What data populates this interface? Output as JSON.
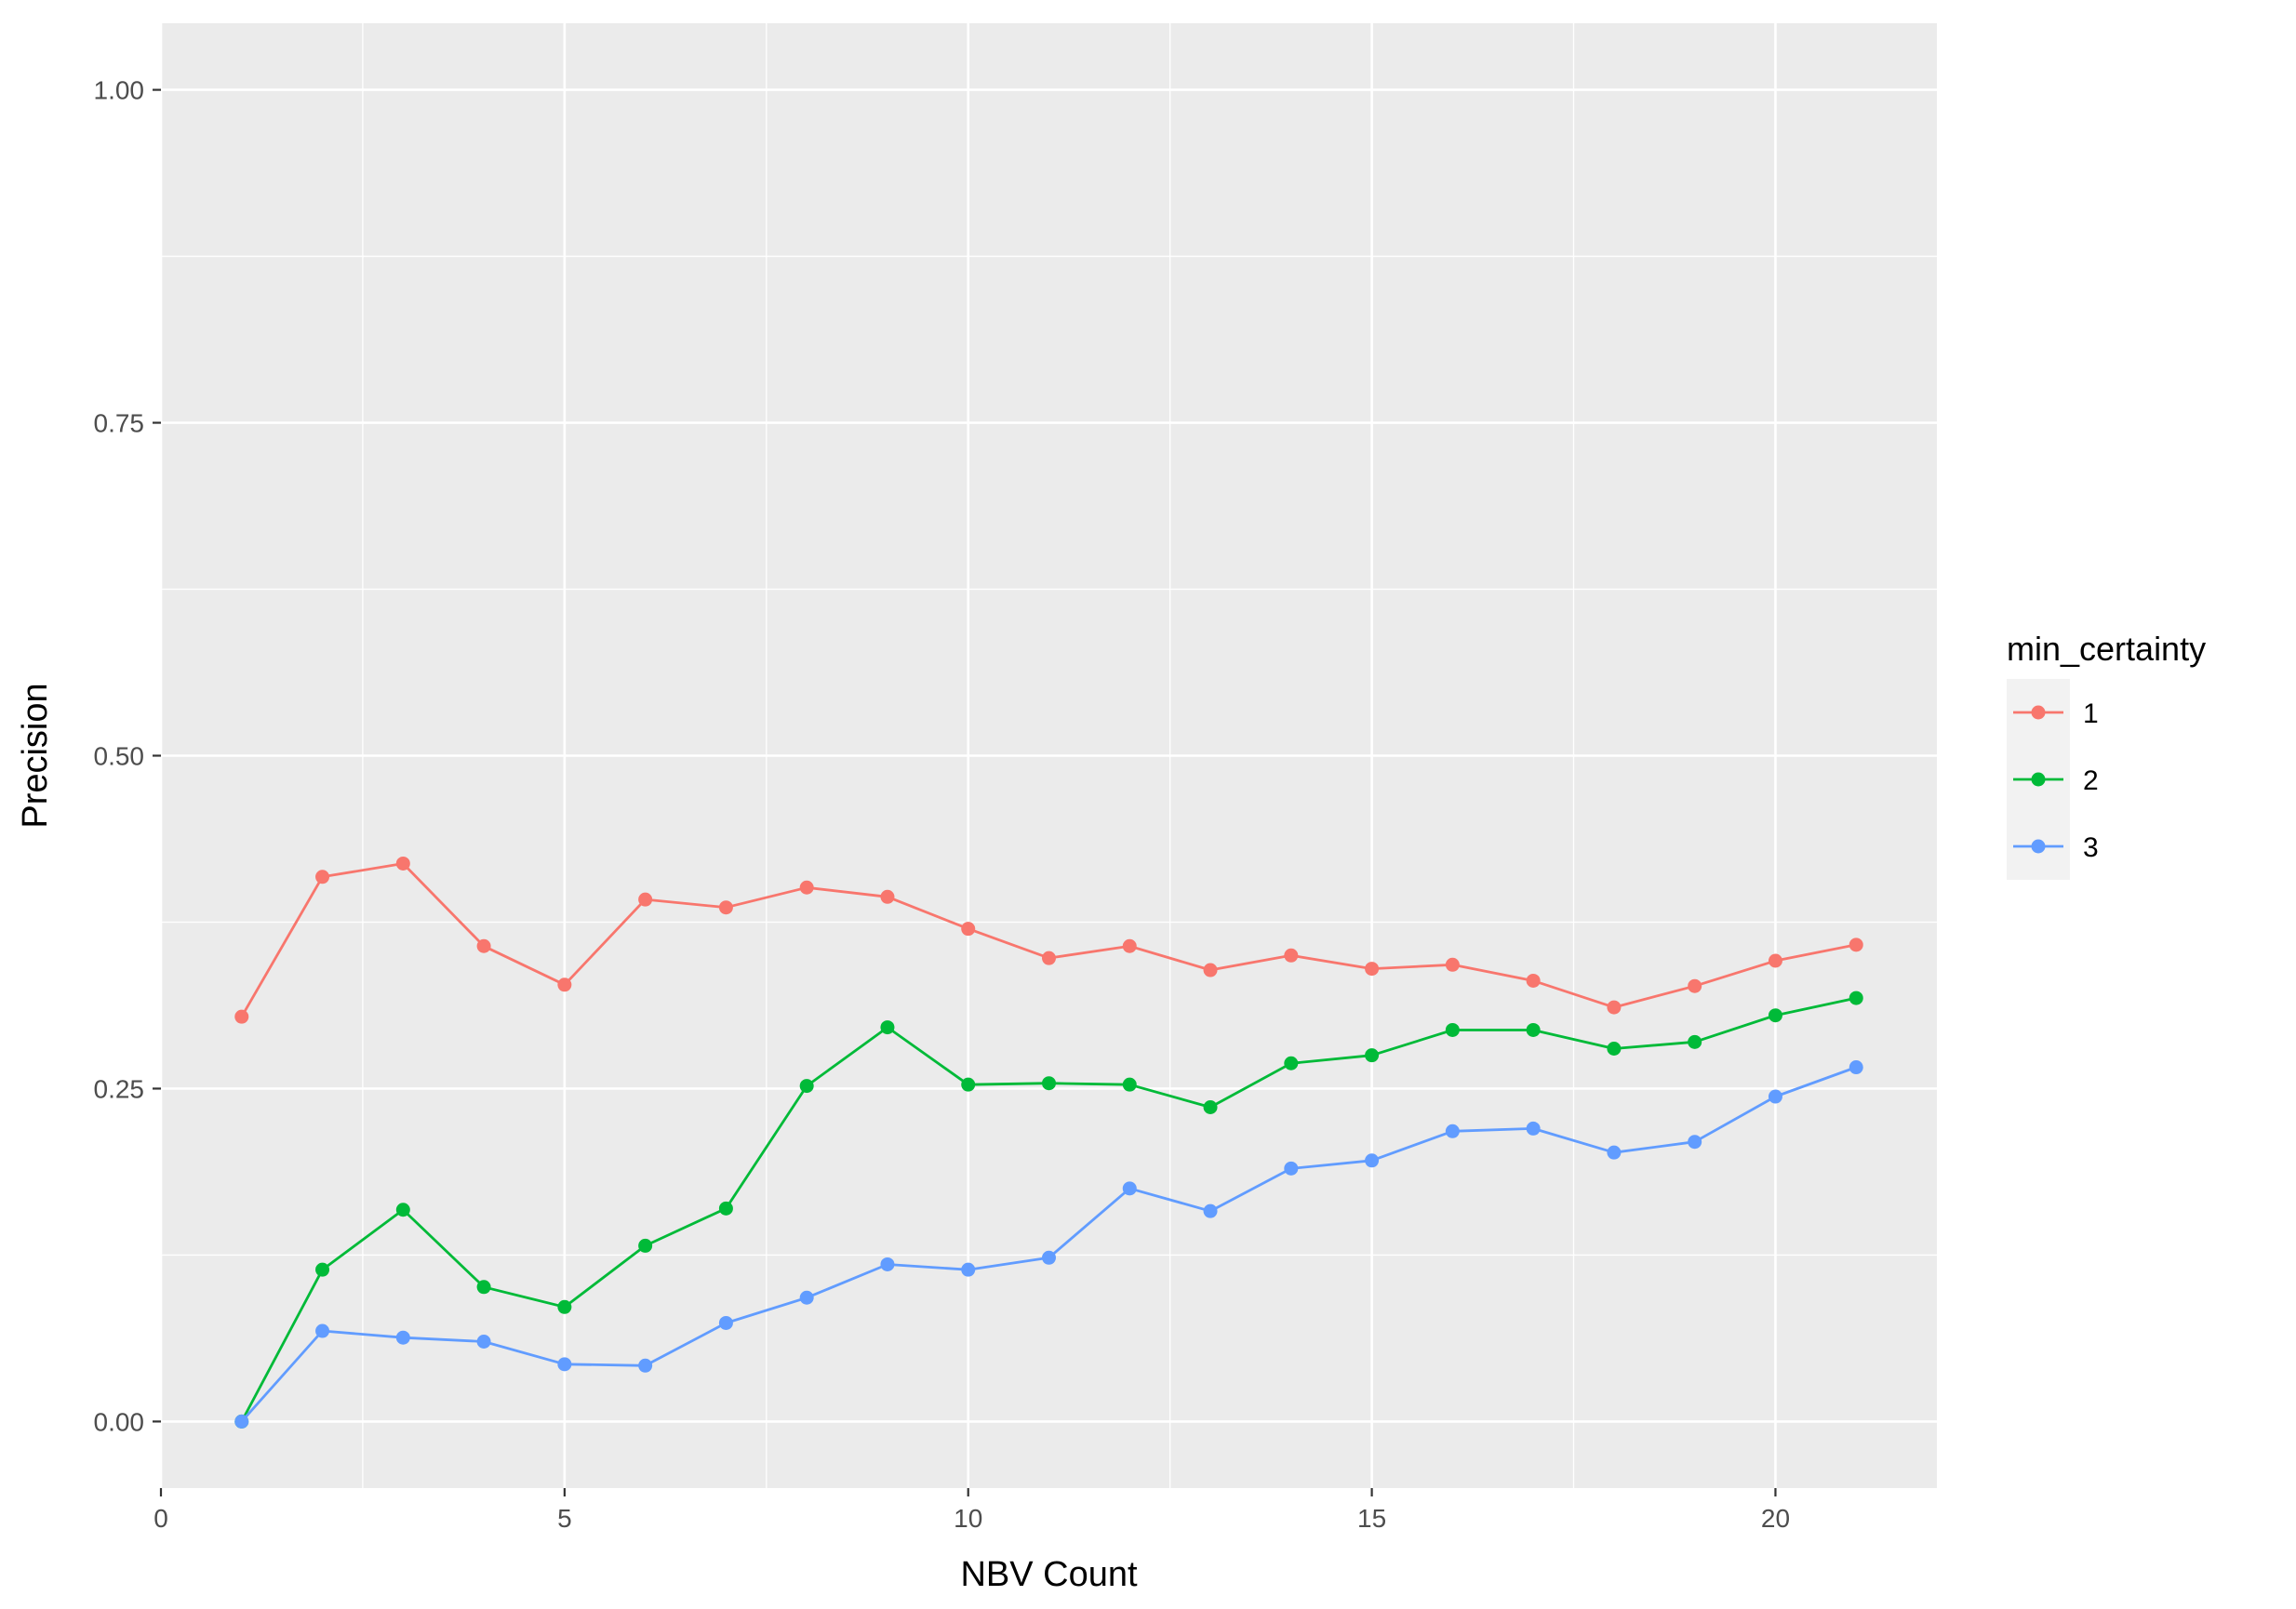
{
  "chart_data": {
    "type": "line",
    "title": "",
    "xlabel": "NBV Count",
    "ylabel": "Precision",
    "xlim": [
      0,
      22
    ],
    "ylim": [
      -0.05,
      1.05
    ],
    "x_ticks": [
      0,
      5,
      10,
      15,
      20
    ],
    "x_tick_labels": [
      "0",
      "5",
      "10",
      "15",
      "20"
    ],
    "y_ticks": [
      0,
      0.25,
      0.5,
      0.75,
      1.0
    ],
    "y_tick_labels": [
      "0.00",
      "0.25",
      "0.50",
      "0.75",
      "1.00"
    ],
    "grid": true,
    "legend": {
      "title": "min_certainty",
      "placement": "right"
    },
    "x": [
      1,
      2,
      3,
      4,
      5,
      6,
      7,
      8,
      9,
      10,
      11,
      12,
      13,
      14,
      15,
      16,
      17,
      18,
      19,
      20,
      21
    ],
    "series": [
      {
        "name": "1",
        "color": "#F8766D",
        "values": [
          0.304,
          0.409,
          0.419,
          0.357,
          0.328,
          0.392,
          0.386,
          0.401,
          0.394,
          0.37,
          0.348,
          0.357,
          0.339,
          0.35,
          0.34,
          0.343,
          0.331,
          0.311,
          0.327,
          0.346,
          0.358
        ]
      },
      {
        "name": "2",
        "color": "#00BA38",
        "values": [
          0.0,
          0.114,
          0.159,
          0.101,
          0.086,
          0.132,
          0.16,
          0.252,
          0.296,
          0.253,
          0.254,
          0.253,
          0.236,
          0.269,
          0.275,
          0.294,
          0.294,
          0.28,
          0.285,
          0.305,
          0.318
        ]
      },
      {
        "name": "3",
        "color": "#619CFF",
        "values": [
          0.0,
          0.068,
          0.063,
          0.06,
          0.043,
          0.042,
          0.074,
          0.093,
          0.118,
          0.114,
          0.123,
          0.175,
          0.158,
          0.19,
          0.196,
          0.218,
          0.22,
          0.202,
          0.21,
          0.244,
          0.266
        ]
      }
    ]
  }
}
